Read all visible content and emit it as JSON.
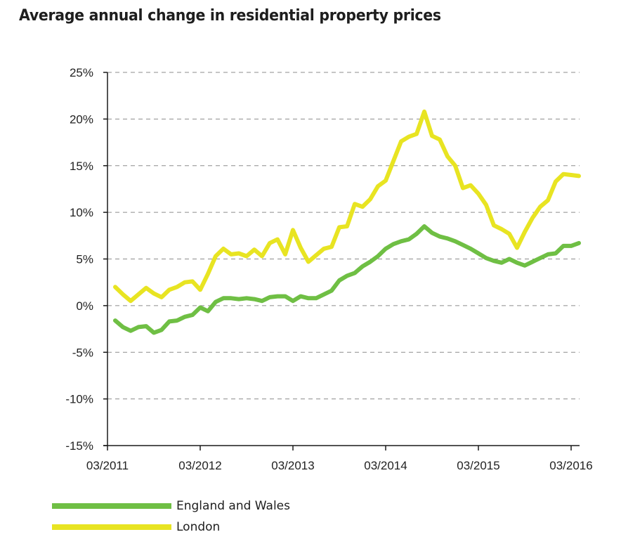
{
  "chart_data": {
    "type": "line",
    "title": "Average annual change in residential property prices",
    "xlabel": "",
    "ylabel": "",
    "ylim": [
      -15,
      25
    ],
    "yticks": [
      25,
      20,
      15,
      10,
      5,
      0,
      -5,
      -10,
      -15
    ],
    "ytick_labels": [
      "25%",
      "20%",
      "15%",
      "10%",
      "5%",
      "0%",
      "-5%",
      "-10%",
      "-15%"
    ],
    "xtick_labels": [
      "03/2011",
      "03/2012",
      "03/2013",
      "03/2014",
      "03/2015",
      "03/2016"
    ],
    "x_start": "04/2011",
    "x_end": "03/2016",
    "x_unit": "month",
    "grid": "horizontal dashed",
    "legend_position": "bottom-left",
    "series": [
      {
        "name": "England and Wales",
        "color": "#6fbf44",
        "values": [
          -1.6,
          -2.3,
          -2.7,
          -2.3,
          -2.2,
          -2.9,
          -2.6,
          -1.7,
          -1.6,
          -1.2,
          -1.0,
          -0.2,
          -0.6,
          0.4,
          0.8,
          0.8,
          0.7,
          0.8,
          0.7,
          0.5,
          0.9,
          1.0,
          1.0,
          0.5,
          1.0,
          0.8,
          0.8,
          1.2,
          1.6,
          2.7,
          3.2,
          3.5,
          4.2,
          4.7,
          5.3,
          6.1,
          6.6,
          6.9,
          7.1,
          7.7,
          8.5,
          7.8,
          7.4,
          7.2,
          6.9,
          6.5,
          6.1,
          5.6,
          5.1,
          4.8,
          4.6,
          5.0,
          4.6,
          4.3,
          4.7,
          5.1,
          5.5,
          5.6,
          6.4,
          6.4,
          6.7
        ]
      },
      {
        "name": "London",
        "color": "#e8e422",
        "values": [
          2.0,
          1.2,
          0.5,
          1.2,
          1.9,
          1.3,
          0.9,
          1.7,
          2.0,
          2.5,
          2.6,
          1.7,
          3.4,
          5.3,
          6.1,
          5.5,
          5.6,
          5.3,
          6.0,
          5.3,
          6.7,
          7.1,
          5.5,
          8.1,
          6.2,
          4.7,
          5.4,
          6.1,
          6.3,
          8.4,
          8.5,
          10.9,
          10.6,
          11.4,
          12.8,
          13.4,
          15.5,
          17.6,
          18.1,
          18.4,
          20.8,
          18.2,
          17.8,
          16.0,
          15.0,
          12.6,
          12.9,
          12.0,
          10.8,
          8.6,
          8.2,
          7.7,
          6.2,
          7.9,
          9.4,
          10.6,
          11.3,
          13.3,
          14.1,
          14.0,
          13.9
        ]
      }
    ]
  }
}
